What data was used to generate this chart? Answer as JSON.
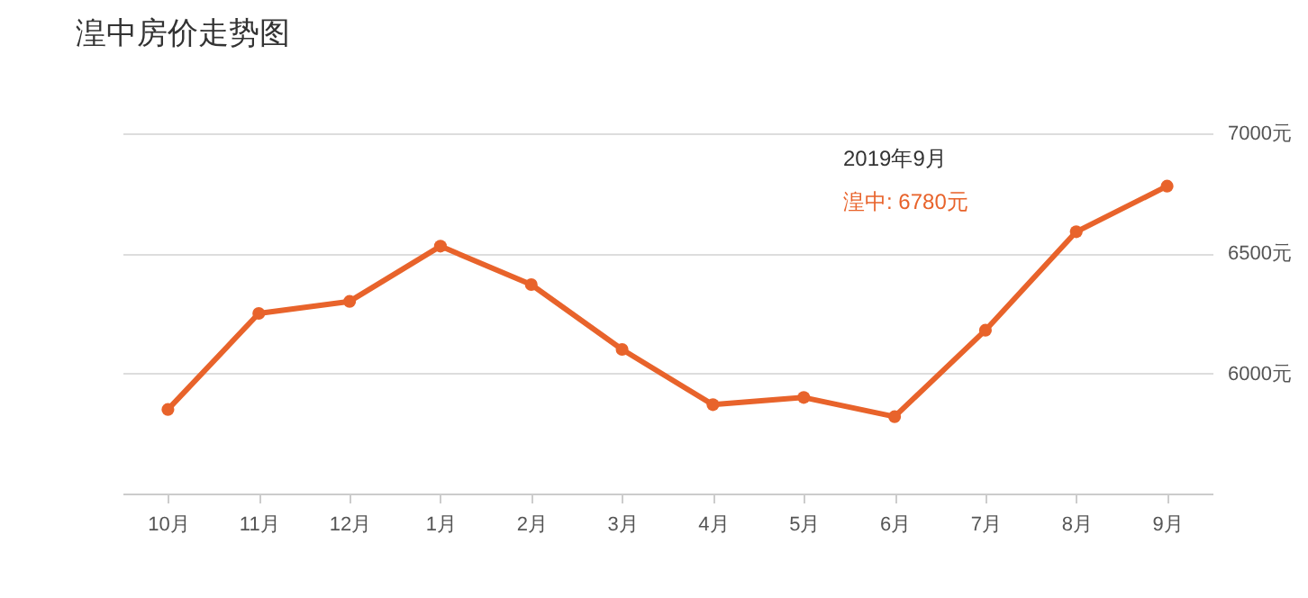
{
  "chart_data": {
    "type": "line",
    "title": "湟中房价走势图",
    "categories": [
      "10月",
      "11月",
      "12月",
      "1月",
      "2月",
      "3月",
      "4月",
      "5月",
      "6月",
      "7月",
      "8月",
      "9月"
    ],
    "series": [
      {
        "color": "#e8632b",
        "values": [
          5850,
          6250,
          6300,
          6530,
          6370,
          6100,
          5870,
          5900,
          5820,
          6180,
          6590,
          6780
        ]
      }
    ],
    "ylim": [
      5500,
      7000
    ],
    "yticks": [
      {
        "value": 6000,
        "label": "6000元"
      },
      {
        "value": 6500,
        "label": "6500元"
      },
      {
        "value": 7000,
        "label": "7000元"
      }
    ],
    "grid": "y",
    "marker": "circle",
    "line_style": "solid",
    "legend": false,
    "annotations": [
      "2019年9月",
      "湟中:  6780元"
    ]
  }
}
